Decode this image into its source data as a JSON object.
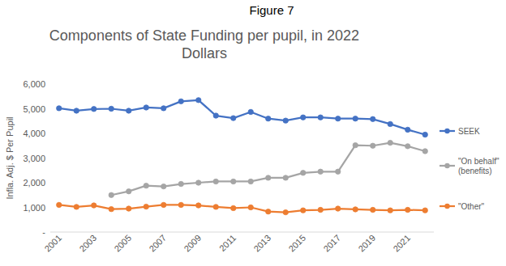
{
  "chart_data": {
    "type": "line",
    "figure_title": "Figure 7",
    "title": "Components of State Funding per pupil, in 2022 Dollars",
    "y_label": "Infla. Adj. $ Per Pupil",
    "categories": [
      "2001",
      null,
      "2003",
      null,
      "2005",
      null,
      "2007",
      null,
      "2009",
      null,
      "2011",
      null,
      "2013",
      null,
      "2015",
      null,
      "2017",
      null,
      "2019",
      null,
      "2021",
      null
    ],
    "series": [
      {
        "name": "SEEK",
        "color": "#4472c4",
        "marker": "circle",
        "values": [
          5020,
          4920,
          4990,
          5000,
          4920,
          5050,
          5020,
          5300,
          5350,
          4720,
          4620,
          4870,
          4600,
          4520,
          4650,
          4650,
          4600,
          4600,
          4580,
          4380,
          4150,
          3950
        ]
      },
      {
        "name": "\"On behalf\" (benefits)",
        "color": "#a5a5a5",
        "marker": "circle",
        "values": [
          null,
          null,
          null,
          1500,
          1650,
          1880,
          1850,
          1950,
          2000,
          2050,
          2050,
          2050,
          2200,
          2200,
          2400,
          2450,
          2450,
          3520,
          3500,
          3620,
          3480,
          3280
        ]
      },
      {
        "name": "\"Other\"",
        "color": "#ed7d31",
        "marker": "circle",
        "values": [
          1100,
          1020,
          1080,
          930,
          950,
          1030,
          1100,
          1100,
          1080,
          1020,
          970,
          1000,
          830,
          800,
          880,
          900,
          950,
          920,
          900,
          880,
          900,
          880
        ]
      }
    ],
    "ylim": [
      0,
      6000
    ],
    "yticks": [
      {
        "value": 0,
        "label": "-"
      },
      {
        "value": 1000,
        "label": "1,000"
      },
      {
        "value": 2000,
        "label": "2,000"
      },
      {
        "value": 3000,
        "label": "3,000"
      },
      {
        "value": 4000,
        "label": "4,000"
      },
      {
        "value": 5000,
        "label": "5,000"
      },
      {
        "value": 6000,
        "label": "6,000"
      }
    ],
    "grid": false,
    "legend": "right"
  }
}
